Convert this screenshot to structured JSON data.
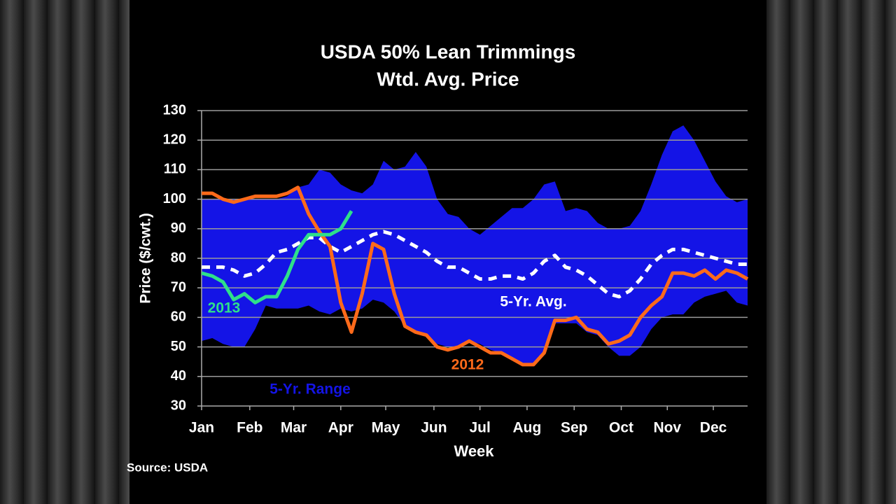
{
  "chart_data": {
    "type": "line",
    "title": "USDA 50% Lean Trimmings",
    "subtitle": "Wtd. Avg. Price",
    "y_label": "Price ($/cwt.)",
    "x_label": "Week",
    "source": "Source: USDA",
    "x": [
      1,
      2,
      3,
      4,
      5,
      6,
      7,
      8,
      9,
      10,
      11,
      12,
      13,
      14,
      15,
      16,
      17,
      18,
      19,
      20,
      21,
      22,
      23,
      24,
      25,
      26,
      27,
      28,
      29,
      30,
      31,
      32,
      33,
      34,
      35,
      36,
      37,
      38,
      39,
      40,
      41,
      42,
      43,
      44,
      45,
      46,
      47,
      48,
      49,
      50,
      51,
      52
    ],
    "xlim": [
      1,
      52
    ],
    "xticks": [
      {
        "value": 1,
        "label": "Jan"
      },
      {
        "value": 5.5,
        "label": "Feb"
      },
      {
        "value": 9.6,
        "label": "Mar"
      },
      {
        "value": 14,
        "label": "Apr"
      },
      {
        "value": 18.2,
        "label": "May"
      },
      {
        "value": 22.7,
        "label": "Jun"
      },
      {
        "value": 27,
        "label": "Jul"
      },
      {
        "value": 31.4,
        "label": "Aug"
      },
      {
        "value": 35.8,
        "label": "Sep"
      },
      {
        "value": 40.2,
        "label": "Oct"
      },
      {
        "value": 44.5,
        "label": "Nov"
      },
      {
        "value": 48.8,
        "label": "Dec"
      }
    ],
    "ylim": [
      30,
      130
    ],
    "yticks": [
      30,
      40,
      50,
      60,
      70,
      80,
      90,
      100,
      110,
      120,
      130
    ],
    "grid": true,
    "series": [
      {
        "name": "5-Yr. Range",
        "type": "band",
        "color": "#1414e6",
        "high": [
          100,
          100,
          100,
          100,
          100,
          100,
          100,
          100,
          101,
          104,
          105,
          110,
          109,
          105,
          103,
          102,
          105,
          113,
          110,
          111,
          116,
          111,
          100,
          95,
          94,
          90,
          88,
          91,
          94,
          97,
          97,
          100,
          105,
          106,
          96,
          97,
          96,
          92,
          90,
          90,
          91,
          96,
          105,
          115,
          123,
          125,
          120,
          113,
          106,
          101,
          99,
          100
        ],
        "low": [
          52,
          53,
          51,
          50,
          50,
          56,
          64,
          63,
          63,
          63,
          64,
          62,
          61,
          63,
          62,
          63,
          66,
          65,
          62,
          57,
          55,
          54,
          51,
          50,
          50,
          52,
          51,
          49,
          48,
          46,
          44,
          44,
          48,
          58,
          58,
          58,
          55,
          54,
          50,
          47,
          47,
          50,
          56,
          60,
          61,
          61,
          65,
          67,
          68,
          69,
          65,
          64
        ]
      },
      {
        "name": "5-Yr. Avg.",
        "type": "line",
        "dashed": true,
        "color": "#ffffff",
        "values": [
          77,
          77,
          77,
          76,
          74,
          75,
          78,
          82,
          83,
          85,
          87,
          87,
          84,
          82,
          84,
          86,
          88,
          89,
          88,
          86,
          84,
          82,
          79,
          77,
          77,
          75,
          73,
          73,
          74,
          74,
          73,
          75,
          79,
          81,
          77,
          76,
          74,
          71,
          68,
          67,
          69,
          73,
          78,
          81,
          83,
          83,
          82,
          81,
          80,
          79,
          78,
          78
        ]
      },
      {
        "name": "2012",
        "type": "line",
        "color": "#ff6a1a",
        "values": [
          102,
          102,
          100,
          99,
          100,
          101,
          101,
          101,
          102,
          104,
          95,
          89,
          84,
          65,
          55,
          68,
          85,
          83,
          68,
          57,
          55,
          54,
          50,
          49,
          50,
          52,
          50,
          48,
          48,
          46,
          44,
          44,
          48,
          59,
          59,
          60,
          56,
          55,
          51,
          52,
          54,
          60,
          64,
          67,
          75,
          75,
          74,
          76,
          73,
          76,
          75,
          73
        ]
      },
      {
        "name": "2013",
        "type": "line",
        "color": "#2ee08a",
        "values": [
          75,
          74,
          72,
          66,
          68,
          65,
          67,
          67,
          74,
          83,
          88,
          88,
          88,
          90,
          96,
          null,
          null,
          null,
          null,
          null,
          null,
          null,
          null,
          null,
          null,
          null,
          null,
          null,
          null,
          null,
          null,
          null,
          null,
          null,
          null,
          null,
          null,
          null,
          null,
          null,
          null,
          null,
          null,
          null,
          null,
          null,
          null,
          null,
          null,
          null,
          null,
          null
        ]
      }
    ]
  }
}
